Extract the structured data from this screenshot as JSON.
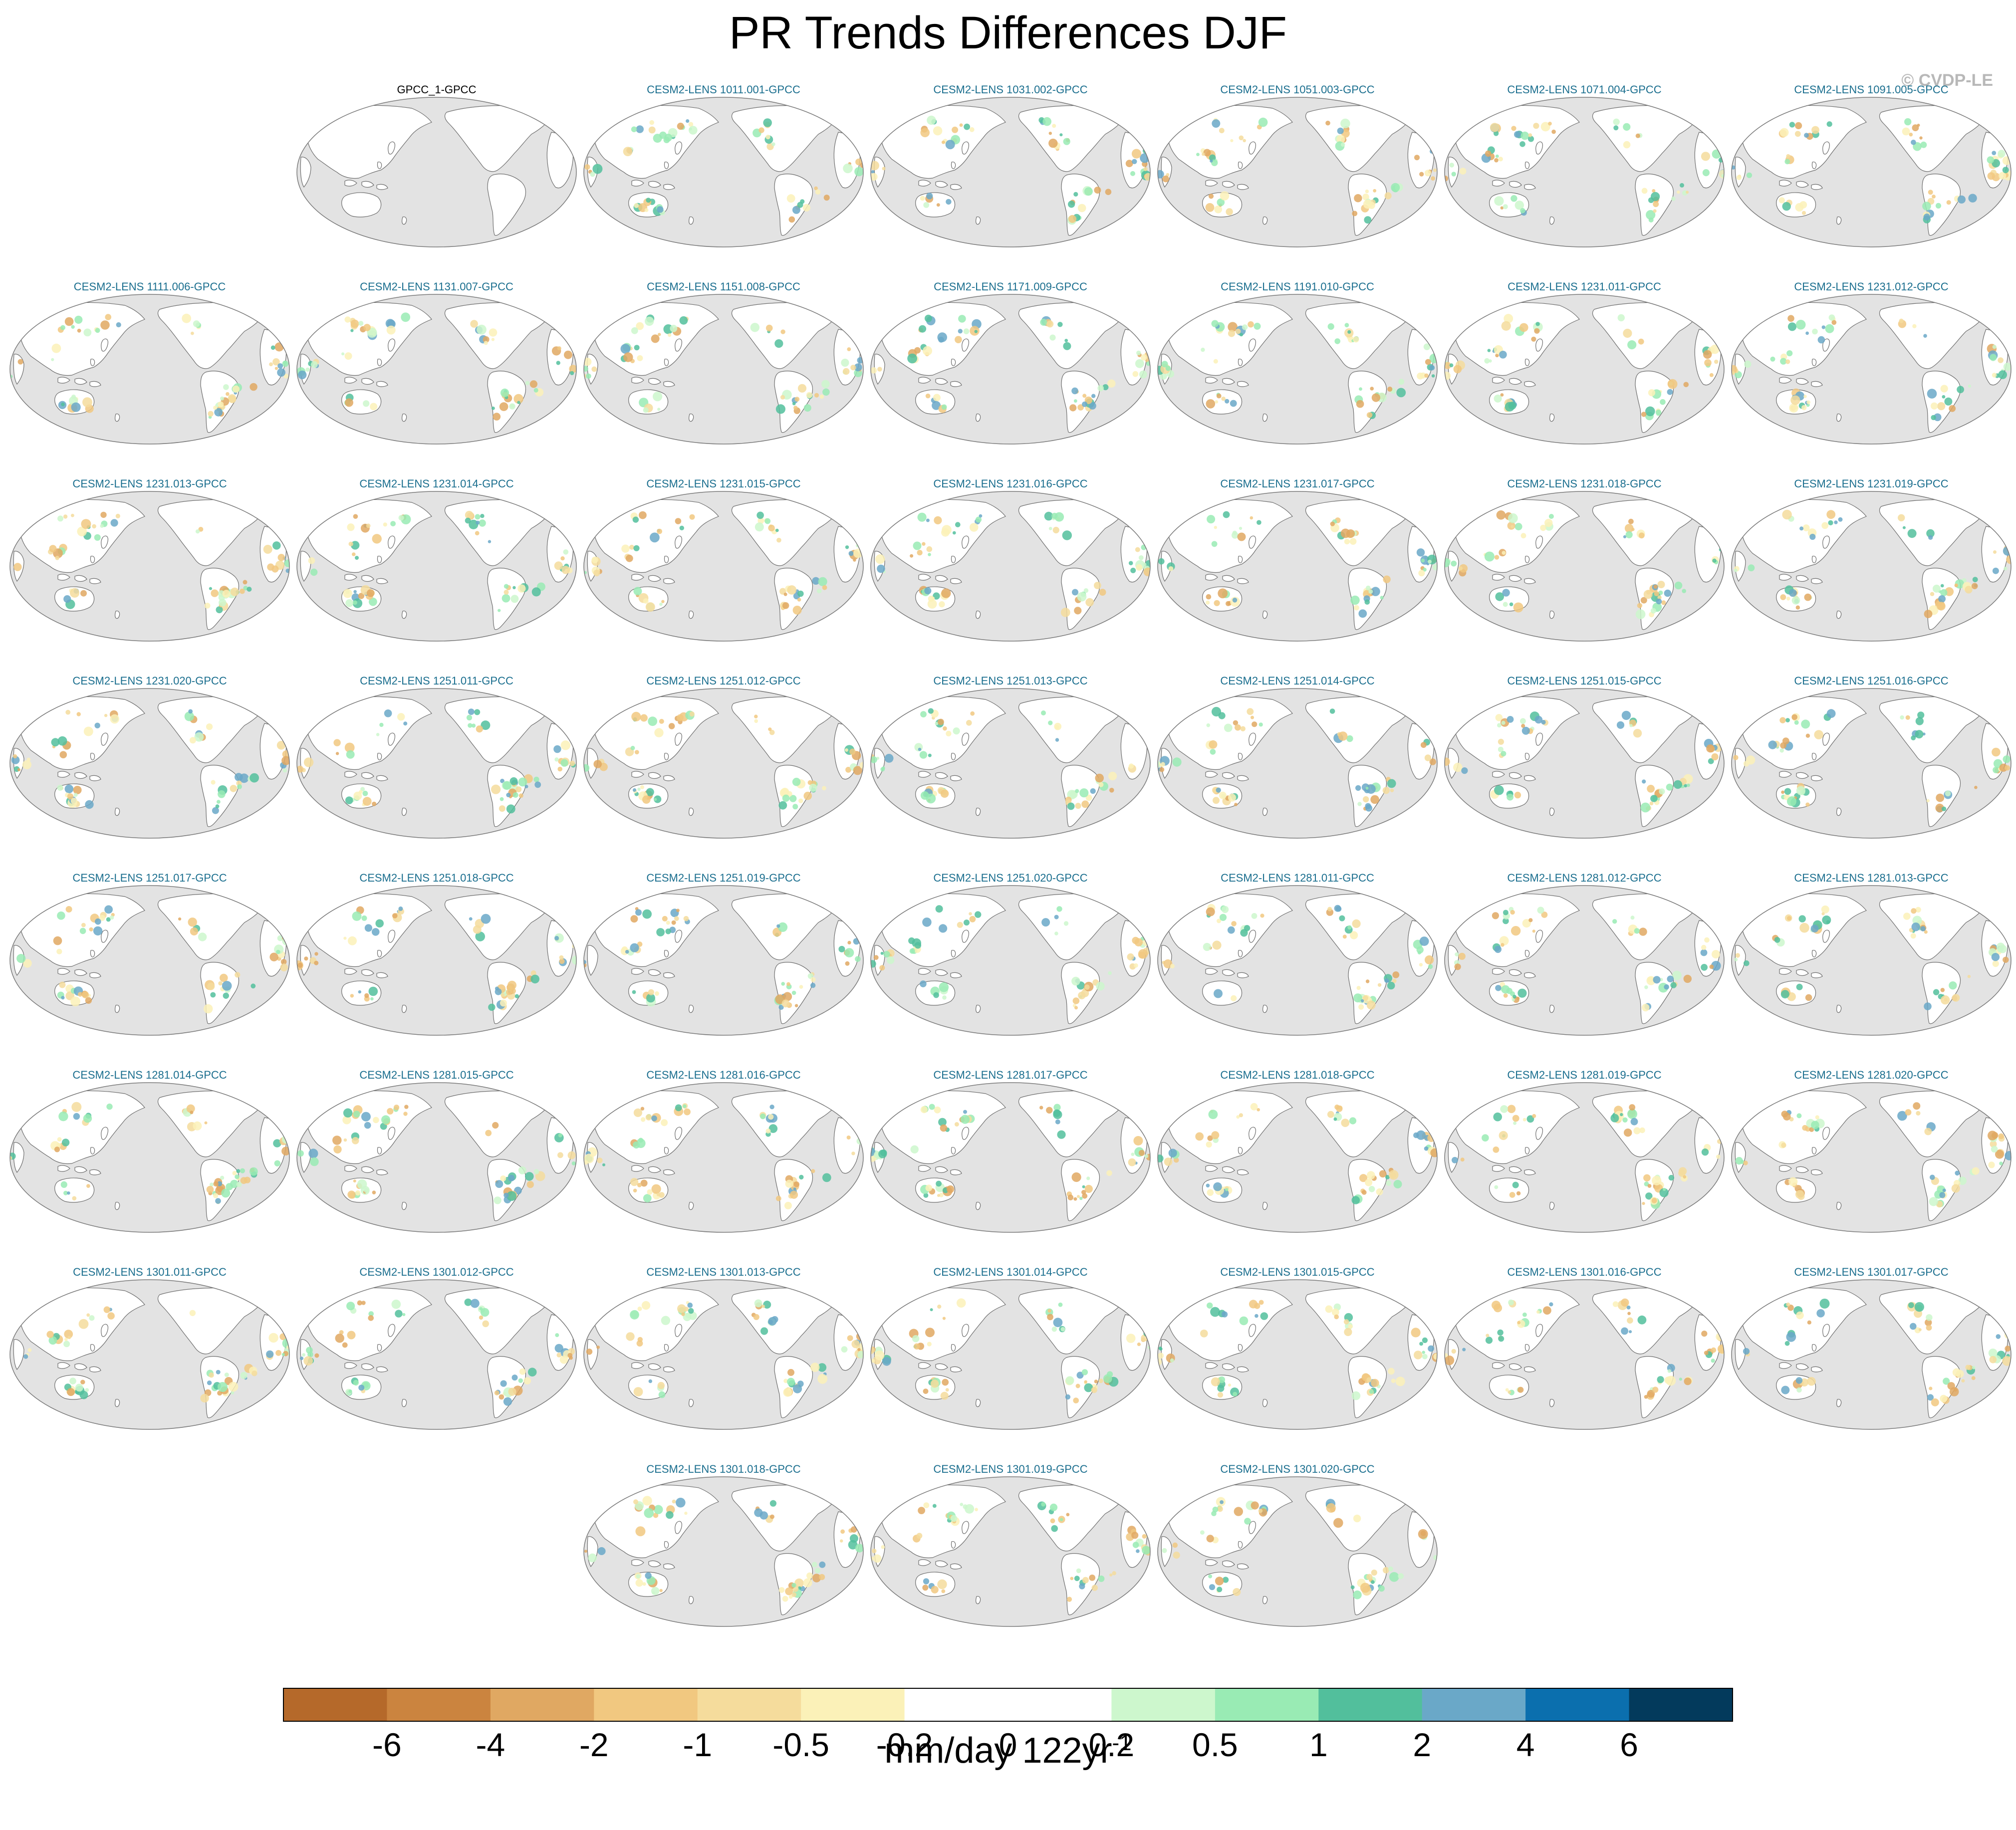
{
  "title": "PR Trends Differences DJF",
  "watermark": "© CVDP-LE",
  "chart_data": {
    "type": "heatmap",
    "title": "PR Trends Differences DJF",
    "projection": "global map panels centered on the Pacific",
    "panels": [
      {
        "title": "GPCC_1-GPCC",
        "field": "none"
      },
      {
        "title": "CESM2-LENS 1011.001-GPCC"
      },
      {
        "title": "CESM2-LENS 1031.002-GPCC"
      },
      {
        "title": "CESM2-LENS 1051.003-GPCC"
      },
      {
        "title": "CESM2-LENS 1071.004-GPCC"
      },
      {
        "title": "CESM2-LENS 1091.005-GPCC"
      },
      {
        "title": "CESM2-LENS 1111.006-GPCC"
      },
      {
        "title": "CESM2-LENS 1131.007-GPCC"
      },
      {
        "title": "CESM2-LENS 1151.008-GPCC"
      },
      {
        "title": "CESM2-LENS 1171.009-GPCC"
      },
      {
        "title": "CESM2-LENS 1191.010-GPCC"
      },
      {
        "title": "CESM2-LENS 1231.011-GPCC"
      },
      {
        "title": "CESM2-LENS 1231.012-GPCC"
      },
      {
        "title": "CESM2-LENS 1231.013-GPCC"
      },
      {
        "title": "CESM2-LENS 1231.014-GPCC"
      },
      {
        "title": "CESM2-LENS 1231.015-GPCC"
      },
      {
        "title": "CESM2-LENS 1231.016-GPCC"
      },
      {
        "title": "CESM2-LENS 1231.017-GPCC"
      },
      {
        "title": "CESM2-LENS 1231.018-GPCC"
      },
      {
        "title": "CESM2-LENS 1231.019-GPCC"
      },
      {
        "title": "CESM2-LENS 1231.020-GPCC"
      },
      {
        "title": "CESM2-LENS 1251.011-GPCC"
      },
      {
        "title": "CESM2-LENS 1251.012-GPCC"
      },
      {
        "title": "CESM2-LENS 1251.013-GPCC"
      },
      {
        "title": "CESM2-LENS 1251.014-GPCC"
      },
      {
        "title": "CESM2-LENS 1251.015-GPCC"
      },
      {
        "title": "CESM2-LENS 1251.016-GPCC"
      },
      {
        "title": "CESM2-LENS 1251.017-GPCC"
      },
      {
        "title": "CESM2-LENS 1251.018-GPCC"
      },
      {
        "title": "CESM2-LENS 1251.019-GPCC"
      },
      {
        "title": "CESM2-LENS 1251.020-GPCC"
      },
      {
        "title": "CESM2-LENS 1281.011-GPCC"
      },
      {
        "title": "CESM2-LENS 1281.012-GPCC"
      },
      {
        "title": "CESM2-LENS 1281.013-GPCC"
      },
      {
        "title": "CESM2-LENS 1281.014-GPCC"
      },
      {
        "title": "CESM2-LENS 1281.015-GPCC"
      },
      {
        "title": "CESM2-LENS 1281.016-GPCC"
      },
      {
        "title": "CESM2-LENS 1281.017-GPCC"
      },
      {
        "title": "CESM2-LENS 1281.018-GPCC"
      },
      {
        "title": "CESM2-LENS 1281.019-GPCC"
      },
      {
        "title": "CESM2-LENS 1281.020-GPCC"
      },
      {
        "title": "CESM2-LENS 1301.011-GPCC"
      },
      {
        "title": "CESM2-LENS 1301.012-GPCC"
      },
      {
        "title": "CESM2-LENS 1301.013-GPCC"
      },
      {
        "title": "CESM2-LENS 1301.014-GPCC"
      },
      {
        "title": "CESM2-LENS 1301.015-GPCC"
      },
      {
        "title": "CESM2-LENS 1301.016-GPCC"
      },
      {
        "title": "CESM2-LENS 1301.017-GPCC"
      },
      {
        "title": "CESM2-LENS 1301.018-GPCC"
      },
      {
        "title": "CESM2-LENS 1301.019-GPCC"
      },
      {
        "title": "CESM2-LENS 1301.020-GPCC"
      }
    ],
    "panel_title_colors": {
      "observation": "#000000",
      "model": "#1a6e8e"
    },
    "colorbar": {
      "tick_labels": [
        "-6",
        "-4",
        "-2",
        "-1",
        "-0.5",
        "-0.2",
        "0",
        "0.2",
        "0.5",
        "1",
        "2",
        "4",
        "6"
      ],
      "colors": [
        "#b5692a",
        "#cb843f",
        "#e0a862",
        "#f1c880",
        "#f5dc9c",
        "#fbf1b8",
        "#ffffff",
        "#ffffff",
        "#cdf7cd",
        "#99ebb4",
        "#52bf9c",
        "#6aa8c8",
        "#0b6fae",
        "#033a5c"
      ],
      "units_base": "mm/day 122yr",
      "units_exponent": "-1"
    },
    "map_colors": {
      "ocean": "#e3e3e3",
      "land_no_signal": "#ffffff",
      "coastline": "#6e6e6e"
    }
  }
}
